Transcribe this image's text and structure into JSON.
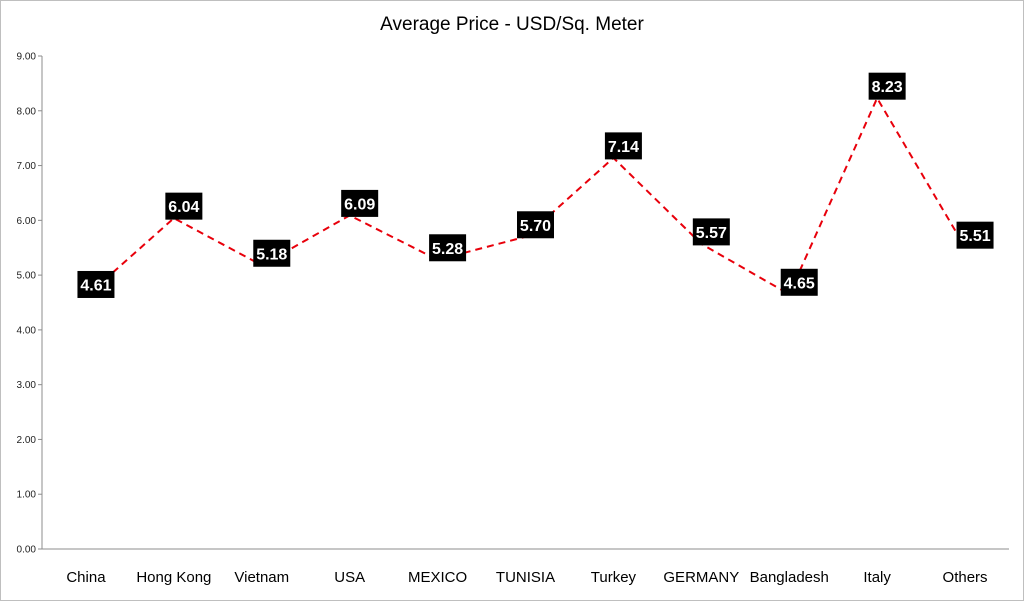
{
  "chart_data": {
    "type": "line",
    "title": "Average Price - USD/Sq. Meter",
    "xlabel": "",
    "ylabel": "",
    "categories": [
      "China",
      "Hong Kong",
      "Vietnam",
      "USA",
      "MEXICO",
      "TUNISIA",
      "Turkey",
      "GERMANY",
      "Bangladesh",
      "Italy",
      "Others"
    ],
    "series": [
      {
        "values": [
          4.61,
          6.04,
          5.18,
          6.09,
          5.28,
          5.7,
          7.14,
          5.57,
          4.65,
          8.23,
          5.51
        ],
        "data_labels": [
          "4.61",
          "6.04",
          "5.18",
          "6.09",
          "5.28",
          "5.70",
          "7.14",
          "5.57",
          "4.65",
          "8.23",
          "5.51"
        ],
        "color": "#e8000b",
        "line_style": "dashed"
      }
    ],
    "ylim": [
      0,
      9
    ],
    "yticks": [
      "0.00",
      "1.00",
      "2.00",
      "3.00",
      "4.00",
      "5.00",
      "6.00",
      "7.00",
      "8.00",
      "9.00"
    ],
    "grid": false,
    "legend": "none",
    "data_label_style": {
      "background": "#000000",
      "text_color": "#ffffff"
    }
  }
}
